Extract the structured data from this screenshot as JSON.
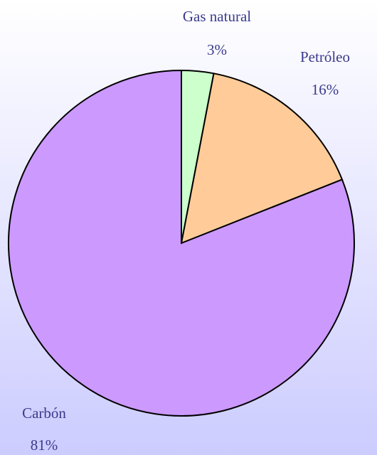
{
  "chart_data": {
    "type": "pie",
    "categories": [
      "Gas natural",
      "Petróleo",
      "Carbón"
    ],
    "values": [
      3,
      16,
      81
    ],
    "value_labels": [
      "3%",
      "16%",
      "81%"
    ],
    "colors": [
      "#ccffcc",
      "#ffcc99",
      "#cc99ff"
    ]
  }
}
